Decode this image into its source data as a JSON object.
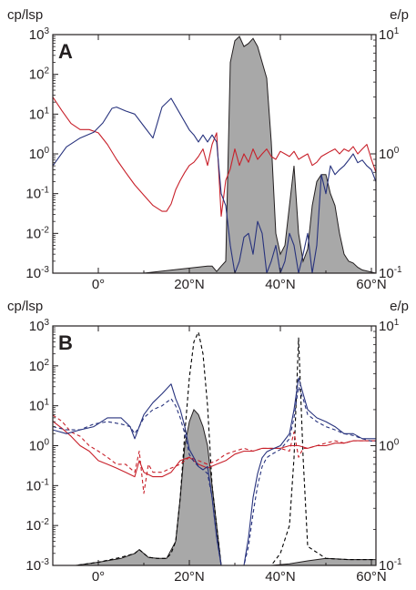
{
  "chart_data": [
    {
      "type": "line",
      "panel_label": "A",
      "ylabel_left": "cp/lsp",
      "ylabel_right": "e/p",
      "xlim": [
        -10,
        61
      ],
      "xticks": [
        {
          "value": 0,
          "label": "0°"
        },
        {
          "value": 20,
          "label": "20°N"
        },
        {
          "value": 40,
          "label": "40°N"
        },
        {
          "value": 60,
          "label": "60°N"
        }
      ],
      "ylim_left": [
        0.001,
        1000
      ],
      "ylim_right": [
        0.1,
        10
      ],
      "yscale": "log",
      "yticks_left": [
        {
          "base": "10",
          "exp": "3",
          "value": 1000
        },
        {
          "base": "10",
          "exp": "2",
          "value": 100
        },
        {
          "base": "10",
          "exp": "1",
          "value": 10
        },
        {
          "base": "10",
          "exp": "0",
          "value": 1
        },
        {
          "base": "10",
          "exp": "-1",
          "value": 0.1
        },
        {
          "base": "10",
          "exp": "-2",
          "value": 0.01
        },
        {
          "base": "10",
          "exp": "-3",
          "value": 0.001
        }
      ],
      "yticks_right": [
        {
          "base": "10",
          "exp": "1",
          "value": 10
        },
        {
          "base": "10",
          "exp": "0",
          "value": 1
        },
        {
          "base": "10",
          "exp": "-1",
          "value": 0.1
        }
      ],
      "series": [
        {
          "color": "#a8a8a8",
          "style": "filled",
          "axis": "left",
          "x": [
            -10,
            10,
            24,
            25,
            26,
            27,
            28,
            29,
            30,
            31,
            32,
            33,
            34,
            35,
            36,
            37,
            38,
            39,
            40,
            41,
            42,
            43,
            44,
            45,
            46,
            47,
            48,
            49,
            50,
            51,
            52,
            53,
            54,
            55,
            56,
            57,
            58,
            61
          ],
          "y": [
            0.001,
            0.001,
            0.0015,
            0.0015,
            0.0011,
            0.0015,
            0.002,
            200,
            700,
            900,
            500,
            600,
            800,
            500,
            200,
            80,
            2,
            0.01,
            0.003,
            0.005,
            0.05,
            0.5,
            0.01,
            0.002,
            0.004,
            0.05,
            0.2,
            0.3,
            0.3,
            0.1,
            0.05,
            0.01,
            0.003,
            0.002,
            0.0018,
            0.0014,
            0.0012,
            0.001
          ]
        },
        {
          "color": "#c8202a",
          "style": "solid",
          "axis": "right",
          "x": [
            -10,
            -8,
            -6,
            -4,
            -2,
            0,
            2,
            4,
            6,
            8,
            10,
            12,
            14,
            15,
            16,
            17,
            18,
            19,
            20,
            21,
            22,
            23,
            24,
            25,
            26,
            27,
            28,
            29,
            30,
            31,
            32,
            33,
            34,
            35,
            36,
            37,
            38,
            39,
            40,
            41,
            42,
            43,
            44,
            45,
            46,
            47,
            48,
            49,
            50,
            51,
            52,
            53,
            54,
            55,
            56,
            57,
            58,
            59,
            60,
            61
          ],
          "y": [
            3.0,
            2.3,
            1.8,
            1.6,
            1.6,
            1.5,
            1.2,
            0.9,
            0.7,
            0.55,
            0.45,
            0.37,
            0.33,
            0.33,
            0.38,
            0.5,
            0.6,
            0.7,
            0.8,
            0.85,
            0.95,
            1.1,
            0.8,
            1.2,
            1.5,
            0.3,
            0.6,
            0.75,
            1.1,
            0.8,
            1.0,
            0.85,
            1.1,
            0.9,
            1.0,
            1.1,
            0.95,
            0.9,
            1.05,
            1.0,
            0.95,
            1.05,
            0.9,
            0.95,
            1.0,
            0.8,
            0.85,
            0.95,
            1.0,
            1.05,
            1.1,
            1.0,
            1.1,
            1.05,
            1.15,
            1.0,
            1.1,
            1.2,
            0.9,
            0.7
          ]
        },
        {
          "color": "#27327d",
          "style": "solid",
          "axis": "left",
          "x": [
            -10,
            -7,
            -4,
            -1,
            1,
            3,
            4,
            6,
            8,
            10,
            12,
            14,
            16,
            18,
            20,
            21,
            22,
            23,
            24,
            25,
            26,
            27,
            28,
            29,
            30,
            31,
            32,
            33,
            34,
            35,
            36,
            37,
            38,
            39,
            40,
            41,
            42,
            43,
            44,
            45,
            46,
            47,
            48,
            49,
            50,
            51,
            52,
            53,
            54,
            55,
            56,
            57,
            58,
            59,
            60,
            61
          ],
          "y": [
            0.5,
            1.5,
            2.5,
            3.5,
            6,
            14,
            15,
            12,
            10,
            5,
            2.5,
            15,
            25,
            10,
            4,
            3,
            2,
            3,
            2,
            3,
            2,
            0.1,
            0.05,
            0.005,
            0.001,
            0.002,
            0.008,
            0.01,
            0.003,
            0.02,
            0.01,
            0.001,
            0.002,
            0.005,
            0.001,
            0.002,
            0.01,
            0.005,
            0.001,
            0.003,
            0.01,
            0.001,
            0.005,
            0.3,
            0.1,
            0.5,
            0.3,
            0.4,
            0.5,
            0.7,
            1,
            0.6,
            0.7,
            0.5,
            0.4,
            0.2
          ]
        }
      ]
    },
    {
      "type": "line",
      "panel_label": "B",
      "ylabel_left": "cp/lsp",
      "ylabel_right": "e/p",
      "xlim": [
        -10,
        61
      ],
      "xticks": [
        {
          "value": 0,
          "label": "0°"
        },
        {
          "value": 20,
          "label": "20°N"
        },
        {
          "value": 40,
          "label": "40°N"
        },
        {
          "value": 60,
          "label": "60°N"
        }
      ],
      "ylim_left": [
        0.001,
        1000
      ],
      "ylim_right": [
        0.1,
        10
      ],
      "yscale": "log",
      "yticks_left": [
        {
          "base": "10",
          "exp": "3",
          "value": 1000
        },
        {
          "base": "10",
          "exp": "2",
          "value": 100
        },
        {
          "base": "10",
          "exp": "1",
          "value": 10
        },
        {
          "base": "10",
          "exp": "0",
          "value": 1
        },
        {
          "base": "10",
          "exp": "-1",
          "value": 0.1
        },
        {
          "base": "10",
          "exp": "-2",
          "value": 0.01
        },
        {
          "base": "10",
          "exp": "-3",
          "value": 0.001
        }
      ],
      "yticks_right": [
        {
          "base": "10",
          "exp": "1",
          "value": 10
        },
        {
          "base": "10",
          "exp": "0",
          "value": 1
        },
        {
          "base": "10",
          "exp": "-1",
          "value": 0.1
        }
      ],
      "series": [
        {
          "color": "#a8a8a8",
          "style": "filled",
          "axis": "left",
          "x": [
            -10,
            -5,
            0,
            5,
            8,
            9,
            11,
            13,
            15,
            17,
            18,
            19,
            20,
            21,
            22,
            23,
            24,
            25,
            26,
            27,
            35,
            38,
            42,
            46,
            50,
            55,
            60,
            61
          ],
          "y": [
            0.001,
            0.001,
            0.0012,
            0.0015,
            0.002,
            0.0025,
            0.0016,
            0.0015,
            0.0015,
            0.004,
            0.05,
            1,
            4,
            8,
            6,
            3,
            1,
            0.1,
            0.01,
            0.001,
            0.001,
            0.001,
            0.0011,
            0.0013,
            0.0015,
            0.0014,
            0.0014,
            0.0014
          ]
        },
        {
          "color": "#000000",
          "style": "dashed",
          "axis": "left",
          "x": [
            -10,
            -5,
            0,
            5,
            8,
            9,
            11,
            13,
            15,
            16,
            17,
            18,
            19,
            20,
            21,
            22,
            23,
            24,
            25,
            26,
            27,
            35,
            38,
            40,
            42,
            43,
            44,
            45,
            46,
            50,
            55,
            60,
            61
          ],
          "y": [
            0.001,
            0.001,
            0.0012,
            0.0016,
            0.002,
            0.0025,
            0.0016,
            0.0015,
            0.0015,
            0.002,
            0.004,
            0.05,
            2,
            50,
            400,
            700,
            200,
            10,
            0.1,
            0.01,
            0.001,
            0.001,
            0.001,
            0.002,
            0.01,
            0.5,
            500,
            0.5,
            0.003,
            0.0015,
            0.0014,
            0.0014,
            0.0014
          ]
        },
        {
          "color": "#c8202a",
          "style": "solid",
          "axis": "right",
          "x": [
            -10,
            -8,
            -6,
            -4,
            -2,
            0,
            2,
            4,
            6,
            8,
            9,
            10,
            12,
            14,
            16,
            18,
            20,
            22,
            24,
            26,
            28,
            30,
            32,
            34,
            36,
            38,
            40,
            42,
            44,
            46,
            48,
            50,
            52,
            54,
            56,
            58,
            60,
            61
          ],
          "y": [
            1.6,
            1.4,
            1.2,
            1.0,
            0.9,
            0.75,
            0.7,
            0.65,
            0.6,
            0.55,
            0.75,
            0.6,
            0.55,
            0.55,
            0.6,
            0.75,
            0.8,
            0.7,
            0.65,
            0.7,
            0.75,
            0.85,
            0.9,
            0.9,
            0.95,
            0.95,
            0.95,
            1.0,
            1.0,
            0.95,
            1.0,
            1.0,
            1.05,
            1.05,
            1.1,
            1.1,
            1.1,
            1.1
          ]
        },
        {
          "color": "#c8202a",
          "style": "dashed",
          "axis": "right",
          "x": [
            -10,
            -8,
            -6,
            -4,
            -2,
            0,
            2,
            4,
            6,
            8,
            9,
            10,
            11,
            12,
            14,
            16,
            18,
            20,
            22,
            24,
            26,
            28,
            30,
            32,
            34,
            36,
            38,
            40,
            42,
            43,
            44,
            45,
            46,
            48,
            50,
            52,
            54,
            56,
            58,
            60,
            61
          ],
          "y": [
            1.8,
            1.6,
            1.3,
            1.2,
            1.0,
            0.9,
            0.8,
            0.7,
            0.7,
            0.6,
            0.9,
            0.4,
            0.7,
            0.6,
            0.6,
            0.65,
            0.7,
            0.8,
            0.75,
            0.7,
            0.75,
            0.85,
            0.9,
            0.95,
            0.9,
            0.95,
            0.95,
            0.95,
            0.9,
            1.3,
            0.8,
            0.95,
            0.95,
            1.0,
            1.05,
            1.1,
            1.05,
            1.1,
            1.1,
            1.1,
            1.1
          ]
        },
        {
          "color": "#27327d",
          "style": "solid",
          "axis": "left",
          "x": [
            -10,
            -7,
            -4,
            -1,
            2,
            5,
            7,
            8,
            9,
            10,
            12,
            14,
            16,
            17,
            18,
            19,
            20,
            21,
            22,
            23,
            24,
            25,
            26,
            27,
            32,
            33,
            34,
            35,
            36,
            37,
            38,
            40,
            42,
            43,
            44,
            45,
            46,
            48,
            50,
            52,
            54,
            56,
            58,
            60,
            61
          ],
          "y": [
            2.5,
            2.0,
            2.5,
            3,
            5,
            5,
            3,
            1.5,
            3,
            6,
            12,
            20,
            35,
            15,
            8,
            3,
            0.8,
            0.5,
            0.3,
            0.25,
            0.3,
            0.05,
            0.005,
            0.001,
            0.001,
            0.005,
            0.05,
            0.2,
            0.5,
            0.7,
            0.8,
            1,
            2,
            8,
            50,
            20,
            8,
            5,
            4,
            3,
            2,
            2,
            1.5,
            1.5,
            1.5
          ]
        },
        {
          "color": "#27327d",
          "style": "dashed",
          "axis": "left",
          "x": [
            -10,
            -7,
            -4,
            -1,
            2,
            5,
            7,
            8,
            9,
            10,
            12,
            14,
            16,
            17,
            18,
            19,
            20,
            21,
            22,
            23,
            24,
            25,
            26,
            27,
            32,
            33,
            34,
            35,
            36,
            37,
            38,
            40,
            42,
            43,
            44,
            45,
            46,
            48,
            50,
            52,
            54,
            56,
            58,
            60,
            61
          ],
          "y": [
            3,
            2.5,
            2.5,
            3.5,
            4,
            3.5,
            3,
            2,
            3,
            5,
            8,
            10,
            15,
            10,
            5,
            2,
            0.6,
            0.4,
            0.3,
            0.25,
            0.2,
            0.05,
            0.005,
            0.001,
            0.001,
            0.003,
            0.02,
            0.1,
            0.3,
            0.5,
            0.6,
            0.8,
            1.5,
            5,
            30,
            15,
            6,
            4,
            3,
            2.5,
            2,
            1.8,
            1.5,
            1.3,
            1.3
          ]
        }
      ]
    }
  ]
}
